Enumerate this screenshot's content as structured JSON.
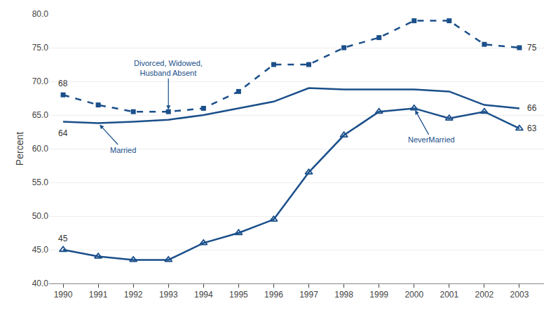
{
  "chart_data": {
    "type": "line",
    "ylabel": "Percent",
    "x": [
      1990,
      1991,
      1992,
      1993,
      1994,
      1995,
      1996,
      1997,
      1998,
      1999,
      2000,
      2001,
      2002,
      2003
    ],
    "xlim": [
      1989.6,
      2003.7
    ],
    "xticks": [
      1990,
      1991,
      1992,
      1993,
      1994,
      1995,
      1996,
      1997,
      1998,
      1999,
      2000,
      2001,
      2002,
      2003
    ],
    "ylim": [
      40.0,
      80.0
    ],
    "yticks": [
      {
        "value": 40.0,
        "label": "40.0"
      },
      {
        "value": 45.0,
        "label": "45.0"
      },
      {
        "value": 50.0,
        "label": "50.0"
      },
      {
        "value": 55.0,
        "label": "55.0"
      },
      {
        "value": 60.0,
        "label": "60.0"
      },
      {
        "value": 65.0,
        "label": "65.0"
      },
      {
        "value": 70.0,
        "label": "70.0"
      },
      {
        "value": 75.0,
        "label": "75.0"
      },
      {
        "value": 80.0,
        "label": "80.0"
      }
    ],
    "grid": true,
    "legend": false,
    "color": "#1a4f8a",
    "series": [
      {
        "name": "Married",
        "line_style": "solid",
        "marker": "none",
        "values": [
          64.0,
          63.8,
          64.0,
          64.3,
          65.0,
          66.0,
          67.0,
          69.0,
          68.8,
          68.8,
          68.8,
          68.5,
          66.5,
          66.0
        ]
      },
      {
        "name": "Divorced, Widowed,\nHusband Absent",
        "line_style": "dashed",
        "marker": "square",
        "values": [
          68.0,
          66.5,
          65.5,
          65.5,
          66.0,
          68.5,
          72.5,
          72.5,
          75.0,
          76.5,
          79.0,
          79.0,
          75.5,
          75.0
        ]
      },
      {
        "name": "NeverMarried",
        "line_style": "solid",
        "marker": "triangle-open",
        "values": [
          45.0,
          44.0,
          43.5,
          43.5,
          46.0,
          47.5,
          49.5,
          56.5,
          62.0,
          65.5,
          66.0,
          64.5,
          65.5,
          63.0
        ]
      }
    ],
    "annotations": [
      {
        "text": "68",
        "x": 1990,
        "y": 68.0
      },
      {
        "text": "64",
        "x": 1990,
        "y": 64.0
      },
      {
        "text": "45",
        "x": 1990,
        "y": 45.0
      },
      {
        "text": "75",
        "x": 2003,
        "y": 75.0
      },
      {
        "text": "66",
        "x": 2003,
        "y": 66.0
      },
      {
        "text": "63",
        "x": 2003,
        "y": 63.0
      }
    ]
  }
}
